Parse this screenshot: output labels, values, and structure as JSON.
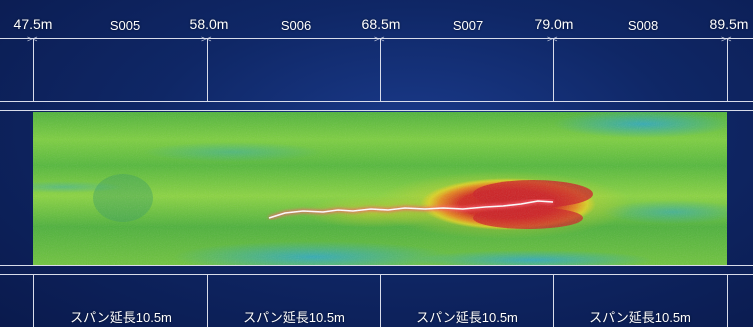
{
  "positions": [
    "47.5m",
    "58.0m",
    "68.5m",
    "79.0m",
    "89.5m"
  ],
  "sections": [
    "S005",
    "S006",
    "S007",
    "S008"
  ],
  "spans": [
    "スパン延長10.5m",
    "スパン延長10.5m",
    "スパン延長10.5m",
    "スパン延長10.5m"
  ],
  "colors": {
    "background": "#0f2766",
    "line": "#d8dcea",
    "heat_green": "#58c23a",
    "heat_yellow": "#e3d21f",
    "heat_red": "#cc1f24",
    "heat_cyan": "#2aa7c9",
    "crack": "#ffffff"
  }
}
